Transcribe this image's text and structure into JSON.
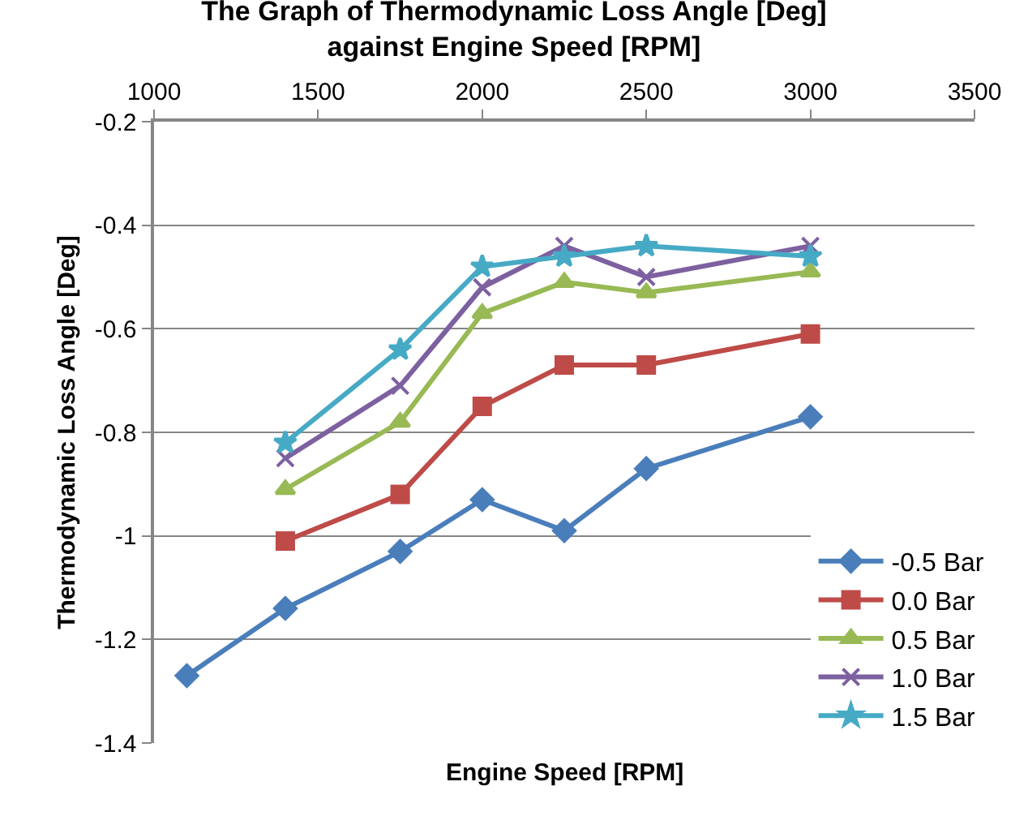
{
  "chart_data": {
    "type": "line",
    "title": "The Graph of Thermodynamic Loss Angle [Deg]\nagainst Engine Speed [RPM]",
    "xlabel": "Engine Speed [RPM]",
    "ylabel": "Thermodynamic Loss Angle [Deg]",
    "xlim": [
      1000,
      3500
    ],
    "xticks": [
      1000,
      1500,
      2000,
      2500,
      3000,
      3500
    ],
    "ylim": [
      -1.4,
      -0.2
    ],
    "yticks": [
      -1.4,
      -1.2,
      -1,
      -0.8,
      -0.6,
      -0.4,
      -0.2
    ],
    "grid": "y",
    "legend": "bottom right",
    "line_style": "solid",
    "series": [
      {
        "name": "-0.5 Bar",
        "color": "#4a7ebb",
        "marker": "diamond",
        "x": [
          1100,
          1400,
          1750,
          2000,
          2250,
          2500,
          3000
        ],
        "values": [
          -1.27,
          -1.14,
          -1.03,
          -0.93,
          -0.99,
          -0.87,
          -0.77
        ]
      },
      {
        "name": "0.0 Bar",
        "color": "#be4b48",
        "marker": "square",
        "x": [
          1400,
          1750,
          2000,
          2250,
          2500,
          3000
        ],
        "values": [
          -1.01,
          -0.92,
          -0.75,
          -0.67,
          -0.67,
          -0.61
        ]
      },
      {
        "name": "0.5 Bar",
        "color": "#98b954",
        "marker": "triangle",
        "x": [
          1400,
          1750,
          2000,
          2250,
          2500,
          3000
        ],
        "values": [
          -0.91,
          -0.78,
          -0.57,
          -0.51,
          -0.53,
          -0.49
        ]
      },
      {
        "name": "1.0 Bar",
        "color": "#7d60a0",
        "marker": "cross",
        "x": [
          1400,
          1750,
          2000,
          2250,
          2500,
          3000
        ],
        "values": [
          -0.85,
          -0.71,
          -0.52,
          -0.44,
          -0.5,
          -0.44
        ]
      },
      {
        "name": "1.5 Bar",
        "color": "#46aac5",
        "marker": "star",
        "x": [
          1400,
          1750,
          2000,
          2250,
          2500,
          3000
        ],
        "values": [
          -0.82,
          -0.64,
          -0.48,
          -0.46,
          -0.44,
          -0.46
        ]
      }
    ]
  }
}
